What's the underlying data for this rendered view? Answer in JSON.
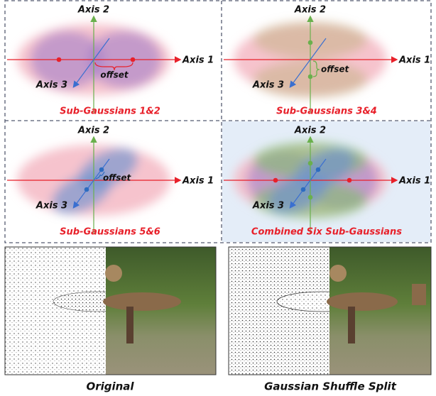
{
  "panels": [
    {
      "caption": "Sub-Gaussians 1&2",
      "axis_labels": [
        "Axis 1",
        "Axis 2",
        "Axis 3"
      ],
      "annotation": "offset"
    },
    {
      "caption": "Sub-Gaussians 3&4",
      "axis_labels": [
        "Axis 1",
        "Axis 2",
        "Axis 3"
      ],
      "annotation": "offset"
    },
    {
      "caption": "Sub-Gaussians 5&6",
      "axis_labels": [
        "Axis 1",
        "Axis 2",
        "Axis 3"
      ],
      "annotation": "offset"
    },
    {
      "caption": "Combined Six Sub-Gaussians",
      "axis_labels": [
        "Axis 1",
        "Axis 2",
        "Axis 3"
      ]
    }
  ],
  "images": [
    {
      "caption": "Original"
    },
    {
      "caption": "Gaussian Shuffle Split"
    }
  ]
}
